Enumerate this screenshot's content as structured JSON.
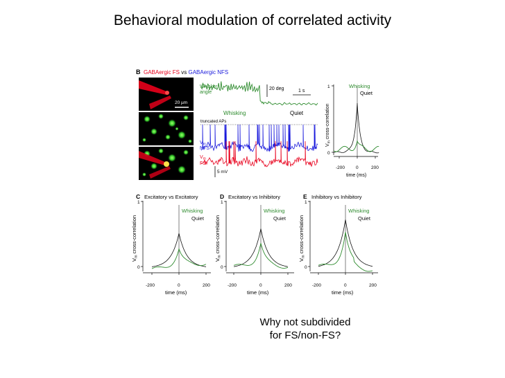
{
  "slide": {
    "title": "Behavioral modulation of correlated activity",
    "note_line1": "Why not subdivided",
    "note_line2": "for FS/non-FS?"
  },
  "colors": {
    "whisking": "#2e8b2e",
    "quiet": "#111111",
    "fs_red": "#e8001c",
    "nfs_blue": "#1a1adc"
  },
  "panel_b": {
    "letter": "B",
    "title_part1": "GABAergic FS",
    "title_vs": " vs ",
    "title_part2": "GABAergic NFS",
    "scale_20um": "20 µm",
    "whisker_label_1": "Whisker",
    "whisker_label_2": "angle",
    "scale_20deg": "20 deg",
    "scale_1s": "1 s",
    "whisking_label": "Whisking",
    "quiet_label": "Quiet",
    "truncated_label": "truncated APs",
    "vm_nfs_1": "V",
    "vm_nfs_sub": "m",
    "vm_nfs_2": "NFS",
    "vm_fs_2": "FS",
    "scale_5mv": "5 mV",
    "inset_ylabel_main": "V",
    "inset_ylabel_sub": "m",
    "inset_ylabel_rest": " cross-correlation",
    "inset_y1": "1",
    "inset_y0": "0",
    "inset_xticks": [
      "-200",
      "0",
      "200"
    ],
    "inset_xlabel": "time (ms)",
    "legend_whisking": "Whisking",
    "legend_quiet": "Quiet"
  },
  "ccg_panels": [
    {
      "letter": "C",
      "title": "Excitatory vs Excitatory",
      "quiet_peak": 0.53,
      "whisking_peak": 0.27
    },
    {
      "letter": "D",
      "title": "Excitatory vs Inhibitory",
      "quiet_peak": 0.6,
      "whisking_peak": 0.36
    },
    {
      "letter": "E",
      "title": "Inhibitory vs Inhibitory",
      "quiet_peak": 0.74,
      "whisking_peak": 0.53
    }
  ],
  "ccg_common": {
    "ylabel_main": "V",
    "ylabel_sub": "m",
    "ylabel_rest": " cross-correlation",
    "y1": "1",
    "y0": "0",
    "xticks": [
      "-200",
      "0",
      "200"
    ],
    "xlabel": "time (ms)",
    "legend_whisking": "Whisking",
    "legend_quiet": "Quiet"
  },
  "chart_data": [
    {
      "type": "line",
      "title": "Excitatory vs Excitatory",
      "xlabel": "time (ms)",
      "ylabel": "Vm cross-correlation",
      "xlim": [
        -200,
        200
      ],
      "ylim": [
        0,
        1
      ],
      "series": [
        {
          "name": "Whisking",
          "x": [
            -200,
            -100,
            -50,
            0,
            50,
            100,
            200
          ],
          "values": [
            0.0,
            0.05,
            0.12,
            0.27,
            0.12,
            0.05,
            0.08
          ]
        },
        {
          "name": "Quiet",
          "x": [
            -200,
            -100,
            -50,
            0,
            50,
            100,
            200
          ],
          "values": [
            0.0,
            0.15,
            0.28,
            0.53,
            0.28,
            0.1,
            0.0
          ]
        }
      ]
    },
    {
      "type": "line",
      "title": "Excitatory vs Inhibitory",
      "xlabel": "time (ms)",
      "ylabel": "Vm cross-correlation",
      "xlim": [
        -200,
        200
      ],
      "ylim": [
        0,
        1
      ],
      "series": [
        {
          "name": "Whisking",
          "x": [
            -200,
            -100,
            -50,
            0,
            50,
            100,
            200
          ],
          "values": [
            0.0,
            0.03,
            0.1,
            0.36,
            0.1,
            0.03,
            0.01
          ]
        },
        {
          "name": "Quiet",
          "x": [
            -200,
            -100,
            -50,
            0,
            50,
            100,
            200
          ],
          "values": [
            0.0,
            0.14,
            0.3,
            0.6,
            0.3,
            0.1,
            0.0
          ]
        }
      ]
    },
    {
      "type": "line",
      "title": "Inhibitory vs Inhibitory",
      "xlabel": "time (ms)",
      "ylabel": "Vm cross-correlation",
      "xlim": [
        -200,
        200
      ],
      "ylim": [
        0,
        1
      ],
      "series": [
        {
          "name": "Whisking",
          "x": [
            -200,
            -100,
            -50,
            0,
            50,
            100,
            200
          ],
          "values": [
            0.0,
            0.02,
            0.12,
            0.53,
            0.12,
            0.0,
            -0.05
          ]
        },
        {
          "name": "Quiet",
          "x": [
            -200,
            -100,
            -50,
            0,
            50,
            100,
            200
          ],
          "values": [
            0.0,
            0.16,
            0.34,
            0.74,
            0.34,
            0.08,
            0.0
          ]
        }
      ]
    },
    {
      "type": "line",
      "title": "",
      "xlabel": "time (ms)",
      "ylabel": "Vm cross-correlation",
      "xlim": [
        -200,
        200
      ],
      "ylim": [
        0,
        1
      ],
      "series": [
        {
          "name": "Whisking",
          "x": [
            -200,
            -100,
            -50,
            0,
            50,
            100,
            200
          ],
          "values": [
            0.0,
            0.05,
            0.1,
            0.15,
            0.08,
            0.1,
            0.05
          ]
        },
        {
          "name": "Quiet",
          "x": [
            -200,
            -100,
            -50,
            0,
            50,
            100,
            200
          ],
          "values": [
            0.0,
            0.02,
            0.15,
            0.74,
            0.15,
            0.03,
            0.0
          ]
        }
      ]
    }
  ]
}
